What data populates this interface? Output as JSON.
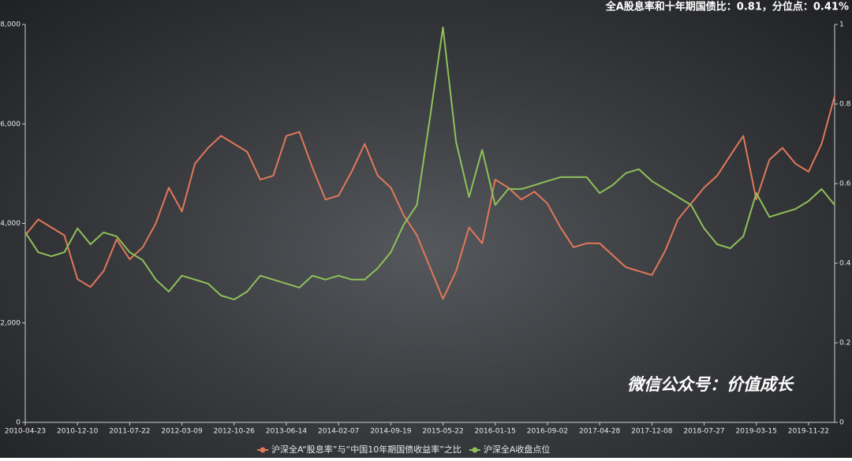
{
  "chart_data": {
    "type": "line",
    "title": "全A股息率和十年期国债比：0.81，分位点：0.41%",
    "annotation": "微信公众号：价值成长",
    "categories": [
      "2010-04-23",
      null,
      null,
      null,
      "2010-12-10",
      null,
      null,
      null,
      "2011-07-22",
      null,
      null,
      null,
      "2012-03-09",
      null,
      null,
      null,
      "2012-10-26",
      null,
      null,
      null,
      "2013-06-14",
      null,
      null,
      null,
      "2014-02-07",
      null,
      null,
      null,
      "2014-09-19",
      null,
      null,
      null,
      "2015-05-22",
      null,
      null,
      null,
      "2016-01-15",
      null,
      null,
      null,
      "2016-09-02",
      null,
      null,
      null,
      "2017-04-28",
      null,
      null,
      null,
      "2017-12-08",
      null,
      null,
      null,
      "2018-07-27",
      null,
      null,
      null,
      "2019-03-15",
      null,
      null,
      null,
      "2019-11-22",
      null,
      null
    ],
    "series": [
      {
        "name": "沪深全A“股息率”与“中国10年期国债收益率”之比",
        "color": "#e0785a",
        "axis": "y2",
        "values": [
          0.47,
          0.51,
          0.49,
          0.47,
          0.36,
          0.34,
          0.38,
          0.46,
          0.41,
          0.44,
          0.5,
          0.59,
          0.53,
          0.65,
          0.69,
          0.72,
          0.7,
          0.68,
          0.61,
          0.62,
          0.72,
          0.73,
          0.64,
          0.56,
          0.57,
          0.63,
          0.7,
          0.62,
          0.59,
          0.52,
          0.47,
          0.39,
          0.31,
          0.38,
          0.49,
          0.45,
          0.61,
          0.59,
          0.56,
          0.58,
          0.55,
          0.49,
          0.44,
          0.45,
          0.45,
          0.42,
          0.39,
          0.38,
          0.37,
          0.43,
          0.51,
          0.55,
          0.59,
          0.62,
          0.67,
          0.72,
          0.56,
          0.66,
          0.69,
          0.65,
          0.63,
          0.7,
          0.82
        ]
      },
      {
        "name": "沪深全A收盘点位",
        "color": "#8fc05a",
        "values": [
          3820,
          3420,
          3340,
          3420,
          3900,
          3580,
          3820,
          3740,
          3420,
          3260,
          2870,
          2630,
          2950,
          2870,
          2790,
          2550,
          2470,
          2630,
          2950,
          2870,
          2790,
          2710,
          2950,
          2870,
          2950,
          2870,
          2870,
          3100,
          3420,
          3980,
          4370,
          6120,
          7940,
          5640,
          4530,
          5480,
          4370,
          4690,
          4690,
          4770,
          4850,
          4930,
          4930,
          4930,
          4610,
          4770,
          5010,
          5090,
          4850,
          4690,
          4530,
          4370,
          3900,
          3580,
          3500,
          3740,
          4610,
          4130,
          4210,
          4290,
          4450,
          4690,
          4370
        ]
      }
    ],
    "ylim": [
      0,
      8000
    ],
    "yticks": [
      0,
      {
        "value": 2000,
        "label": "2,000"
      },
      {
        "value": 4000,
        "label": "4,000"
      },
      {
        "value": 6000,
        "label": "6,000"
      },
      {
        "value": 8000,
        "label": "8,000"
      }
    ],
    "y2lim": [
      0,
      1
    ],
    "y2ticks": [
      0,
      0.2,
      0.4,
      0.6,
      0.8,
      1
    ],
    "grid": false
  }
}
